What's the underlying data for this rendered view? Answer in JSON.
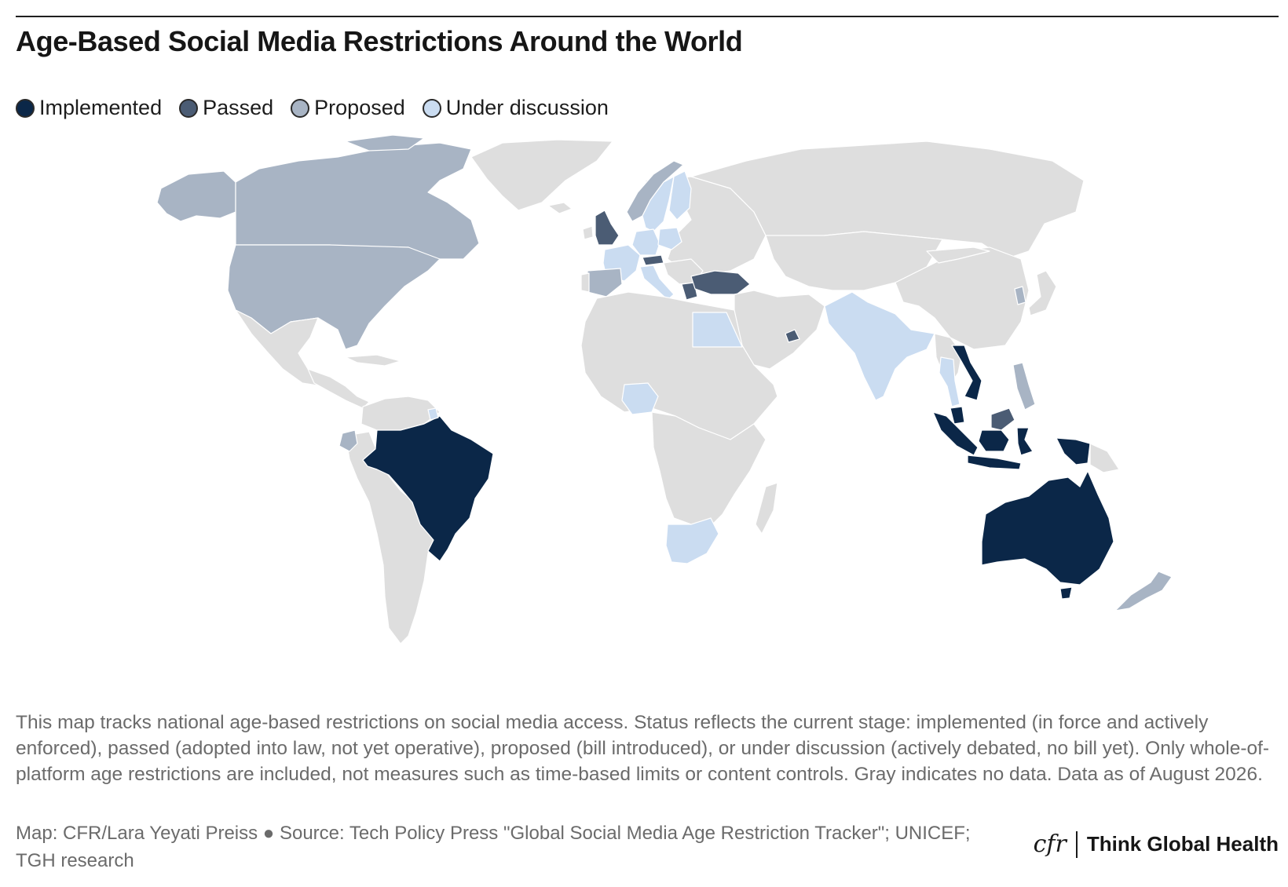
{
  "title": "Age-Based Social Media Restrictions Around the World",
  "legend": [
    {
      "label": "Implemented",
      "color": "#0b2748"
    },
    {
      "label": "Passed",
      "color": "#4b5c74"
    },
    {
      "label": "Proposed",
      "color": "#a8b4c4"
    },
    {
      "label": "Under discussion",
      "color": "#cadcf1"
    }
  ],
  "no_data_color": "#dedede",
  "countries": {
    "implemented": [
      "Brazil",
      "Australia",
      "Vietnam",
      "Indonesia",
      "Malaysia",
      "Papua New Guinea"
    ],
    "passed": [
      "United Kingdom",
      "Turkey",
      "United Arab Emirates",
      "Austria",
      "Greece"
    ],
    "proposed": [
      "United States",
      "Canada",
      "Spain",
      "Norway",
      "Ecuador",
      "Philippines",
      "South Korea",
      "New Zealand"
    ],
    "under_discussion": [
      "France",
      "Germany",
      "Poland",
      "Sweden",
      "Finland",
      "Italy",
      "Egypt",
      "India",
      "Thailand",
      "Nigeria",
      "South Africa",
      "Suriname"
    ]
  },
  "note": "This map tracks national age-based restrictions on social media access. Status reflects the current stage: implemented (in force and actively enforced), passed (adopted into law, not yet operative), proposed (bill introduced), or under discussion (actively debated, no bill yet). Only whole-of-platform age restrictions are included, not measures such as time-based limits or content controls. Gray indicates no data. Data as of August 2026.",
  "source": "Map: CFR/Lara Yeyati Preiss ● Source: Tech Policy Press \"Global Social Media Age Restriction Tracker\"; UNICEF; TGH research",
  "brand": {
    "logo": "cfr",
    "name": "Think Global Health"
  }
}
